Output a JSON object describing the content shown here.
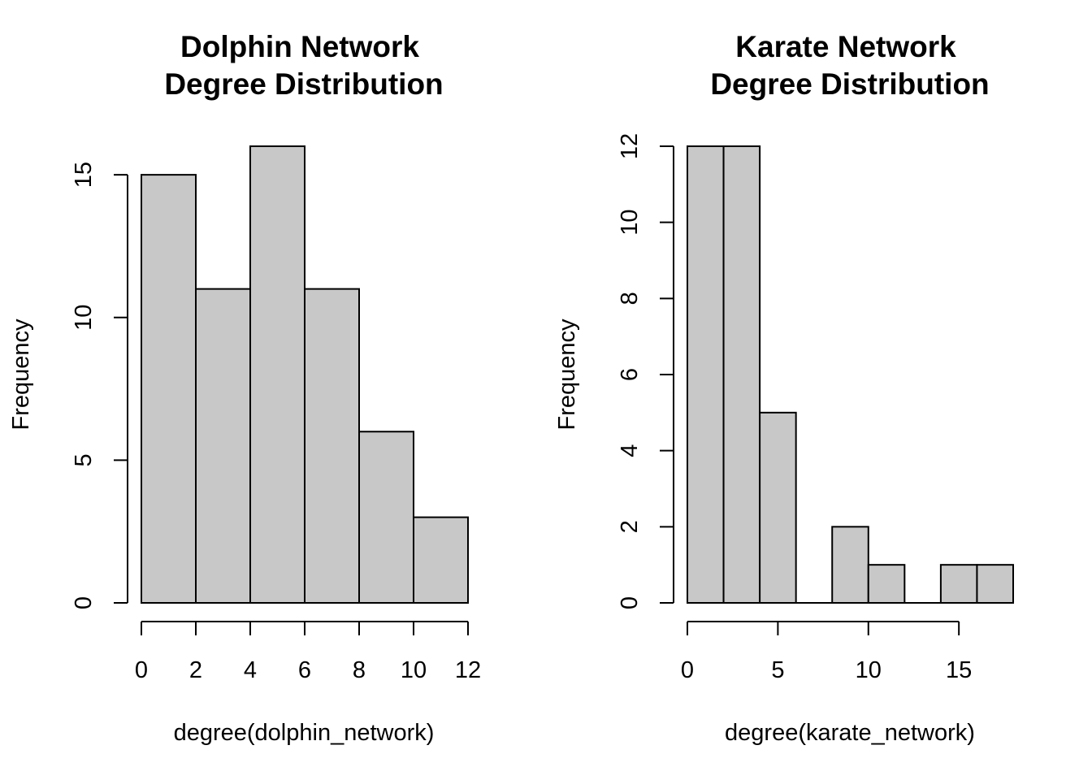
{
  "chart_data": [
    {
      "type": "bar",
      "title_line1": "Dolphin Network",
      "title_line2": "Degree Distribution",
      "xlabel": "degree(dolphin_network)",
      "ylabel": "Frequency",
      "bins": [
        [
          0,
          2
        ],
        [
          2,
          4
        ],
        [
          4,
          6
        ],
        [
          6,
          8
        ],
        [
          8,
          10
        ],
        [
          10,
          12
        ]
      ],
      "values": [
        15,
        11,
        16,
        11,
        6,
        3
      ],
      "xlim": [
        0,
        12
      ],
      "ylim": [
        0,
        16
      ],
      "x_ticks": [
        0,
        2,
        4,
        6,
        8,
        10,
        12
      ],
      "x_tick_labels": [
        "0",
        "2",
        "4",
        "6",
        "8",
        "10",
        "12"
      ],
      "y_ticks": [
        0,
        5,
        10,
        15
      ],
      "y_tick_labels": [
        "0",
        "5",
        "10",
        "15"
      ],
      "bar_color": "#C8C8C8",
      "grid": false
    },
    {
      "type": "bar",
      "title_line1": "Karate Network",
      "title_line2": "Degree Distribution",
      "xlabel": "degree(karate_network)",
      "ylabel": "Frequency",
      "bins": [
        [
          0,
          2
        ],
        [
          2,
          4
        ],
        [
          4,
          6
        ],
        [
          6,
          8
        ],
        [
          8,
          10
        ],
        [
          10,
          12
        ],
        [
          12,
          14
        ],
        [
          14,
          16
        ],
        [
          16,
          18
        ]
      ],
      "values": [
        12,
        12,
        5,
        0,
        2,
        1,
        0,
        1,
        1
      ],
      "xlim": [
        0,
        18
      ],
      "ylim": [
        0,
        12
      ],
      "x_ticks": [
        0,
        5,
        10,
        15
      ],
      "x_tick_labels": [
        "0",
        "5",
        "10",
        "15"
      ],
      "y_ticks": [
        0,
        2,
        4,
        6,
        8,
        10,
        12
      ],
      "y_tick_labels": [
        "0",
        "2",
        "4",
        "6",
        "8",
        "10",
        "12"
      ],
      "bar_color": "#C8C8C8",
      "grid": false
    }
  ]
}
